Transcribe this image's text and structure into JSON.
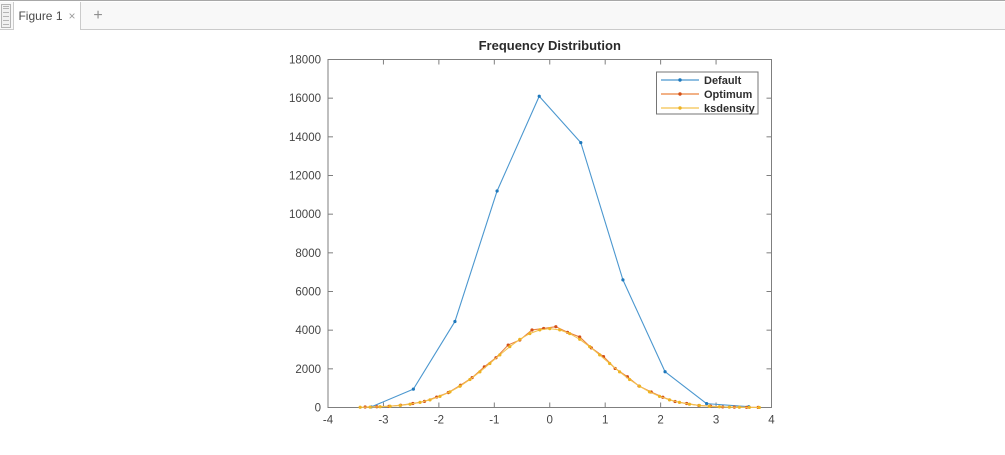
{
  "window": {
    "tab_bar": {
      "grip_icon": "≡",
      "tab": {
        "label": "Figure 1",
        "close_icon": "×"
      },
      "new_tab_icon": "+"
    }
  },
  "chart_data": {
    "type": "line",
    "title": "Frequency Distribution",
    "xlabel": "",
    "ylabel": "",
    "xlim": [
      -4,
      4
    ],
    "ylim": [
      0,
      18000
    ],
    "x_ticks": [
      -4,
      -3,
      -2,
      -1,
      0,
      1,
      2,
      3,
      4
    ],
    "y_ticks": [
      0,
      2000,
      4000,
      6000,
      8000,
      10000,
      12000,
      14000,
      16000,
      18000
    ],
    "grid": false,
    "box": true,
    "tick_dir": "in",
    "axis_color": "#7f7f7f",
    "tick_label_color": "#454545",
    "title_color": "#2b2b2b",
    "legend": {
      "position": "northeast",
      "border_color": "#757575",
      "text_color": "#2e2e2e",
      "entries": [
        "Default",
        "Optimum",
        "ksdensity"
      ]
    },
    "series": [
      {
        "name": "Default",
        "line_color": "#4b97cf",
        "marker_color": "#1e78bc",
        "marker": "point",
        "x": [
          -3.22,
          -2.46,
          -1.71,
          -0.95,
          -0.19,
          0.56,
          1.32,
          2.08,
          2.83,
          3.59
        ],
        "y": [
          30,
          950,
          4450,
          11200,
          16100,
          13700,
          6600,
          1850,
          200,
          40
        ]
      },
      {
        "name": "Optimum",
        "line_color": "#e9823e",
        "marker_color": "#d34f17",
        "marker": "point",
        "x": [
          -3.33,
          -3.12,
          -2.9,
          -2.69,
          -2.47,
          -2.26,
          -2.04,
          -1.83,
          -1.61,
          -1.4,
          -1.18,
          -0.97,
          -0.75,
          -0.54,
          -0.32,
          -0.11,
          0.11,
          0.32,
          0.54,
          0.75,
          0.97,
          1.18,
          1.4,
          1.61,
          1.83,
          2.04,
          2.26,
          2.47,
          2.69,
          2.9,
          3.12,
          3.33,
          3.55,
          3.76
        ],
        "y": [
          25,
          40,
          60,
          120,
          205,
          315,
          540,
          770,
          1150,
          1545,
          2105,
          2575,
          3230,
          3490,
          4010,
          4090,
          4180,
          3890,
          3650,
          3085,
          2635,
          2020,
          1590,
          1110,
          800,
          530,
          310,
          205,
          105,
          70,
          30,
          20,
          10,
          5
        ]
      },
      {
        "name": "ksdensity",
        "line_color": "#f4c24f",
        "marker_color": "#eeb322",
        "marker": "point",
        "x": [
          -3.42,
          -3.24,
          -3.06,
          -2.88,
          -2.7,
          -2.52,
          -2.34,
          -2.16,
          -1.98,
          -1.8,
          -1.62,
          -1.44,
          -1.26,
          -1.08,
          -0.9,
          -0.72,
          -0.54,
          -0.36,
          -0.18,
          0.0,
          0.18,
          0.36,
          0.54,
          0.72,
          0.9,
          1.08,
          1.26,
          1.44,
          1.62,
          1.8,
          1.98,
          2.16,
          2.34,
          2.52,
          2.7,
          2.88,
          3.06,
          3.24,
          3.42,
          3.6,
          3.78
        ],
        "y": [
          12,
          21,
          38,
          65,
          107,
          171,
          264,
          396,
          575,
          807,
          1098,
          1447,
          1845,
          2277,
          2721,
          3148,
          3527,
          3824,
          4014,
          4080,
          4014,
          3824,
          3527,
          3148,
          2721,
          2277,
          1845,
          1447,
          1098,
          807,
          575,
          396,
          264,
          171,
          107,
          65,
          38,
          21,
          12,
          6,
          3
        ]
      }
    ]
  }
}
